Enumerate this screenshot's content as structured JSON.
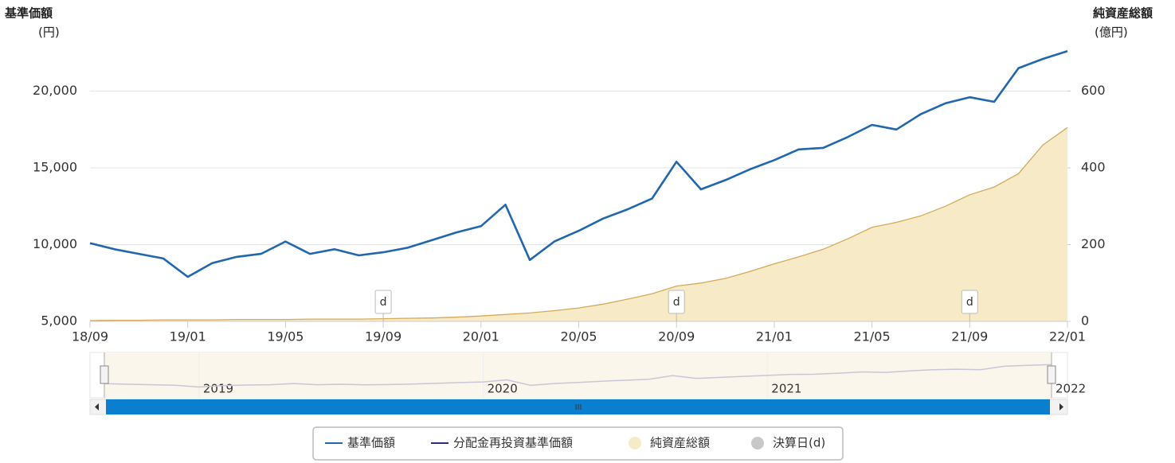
{
  "chart_data": {
    "type": "line",
    "y_title": "基準価額",
    "y_unit": "(円)",
    "y2_title": "純資産総額",
    "y2_unit": "(億円)",
    "x": [
      "18/09",
      "18/10",
      "18/11",
      "18/12",
      "19/01",
      "19/02",
      "19/03",
      "19/04",
      "19/05",
      "19/06",
      "19/07",
      "19/08",
      "19/09",
      "19/10",
      "19/11",
      "19/12",
      "20/01",
      "20/02",
      "20/03",
      "20/04",
      "20/05",
      "20/06",
      "20/07",
      "20/08",
      "20/09",
      "20/10",
      "20/11",
      "20/12",
      "21/01",
      "21/02",
      "21/03",
      "21/04",
      "21/05",
      "21/06",
      "21/07",
      "21/08",
      "21/09",
      "21/10",
      "21/11",
      "21/12",
      "22/01"
    ],
    "xlim": [
      "18/09",
      "22/01"
    ],
    "xticks": [
      "18/09",
      "19/01",
      "19/05",
      "19/09",
      "20/01",
      "20/05",
      "20/09",
      "21/01",
      "21/05",
      "21/09",
      "22/01"
    ],
    "ylim": [
      5000,
      25000
    ],
    "yticks": [
      {
        "value": 5000,
        "label": "5,000"
      },
      {
        "value": 10000,
        "label": "10,000"
      },
      {
        "value": 15000,
        "label": "15,000"
      },
      {
        "value": 20000,
        "label": "20,000"
      }
    ],
    "y2lim": [
      0,
      800
    ],
    "y2ticks": [
      0,
      200,
      400,
      600
    ],
    "grid": true,
    "series": [
      {
        "name": "基準価額",
        "color": "#2167ae",
        "kind": "line",
        "values": [
          10100,
          9700,
          9400,
          9100,
          7900,
          8800,
          9200,
          9400,
          10200,
          9400,
          9700,
          9300,
          9500,
          9800,
          10300,
          10800,
          11200,
          12600,
          9000,
          10200,
          10900,
          11700,
          12300,
          13000,
          15400,
          13600,
          14200,
          14900,
          15500,
          16200,
          16300,
          17000,
          17800,
          17500,
          18500,
          19200,
          19600,
          19300,
          21500,
          22100,
          22600
        ]
      },
      {
        "name": "純資産総額",
        "color": "#d4aa5a",
        "fill": "#f6ebc6",
        "kind": "area",
        "axis": "y2",
        "values": [
          2,
          3,
          3,
          4,
          4,
          4,
          5,
          5,
          5,
          6,
          6,
          6,
          7,
          8,
          9,
          11,
          14,
          18,
          22,
          28,
          35,
          45,
          58,
          72,
          92,
          100,
          112,
          130,
          150,
          168,
          188,
          215,
          245,
          258,
          275,
          300,
          330,
          350,
          385,
          460,
          505
        ]
      }
    ],
    "legend_only": [
      {
        "name": "分配金再投資基準価額",
        "color": "#2e2c7a",
        "symbol": "line"
      },
      {
        "name": "決算日(d)",
        "color": "#c8c8c8",
        "symbol": "circle"
      }
    ],
    "settlement_label": "d",
    "settlement_dates": [
      "19/09",
      "20/09",
      "21/09"
    ],
    "navigator_labels": [
      "2019",
      "2020",
      "2021",
      "2022"
    ],
    "scrollbar_label": "III"
  }
}
